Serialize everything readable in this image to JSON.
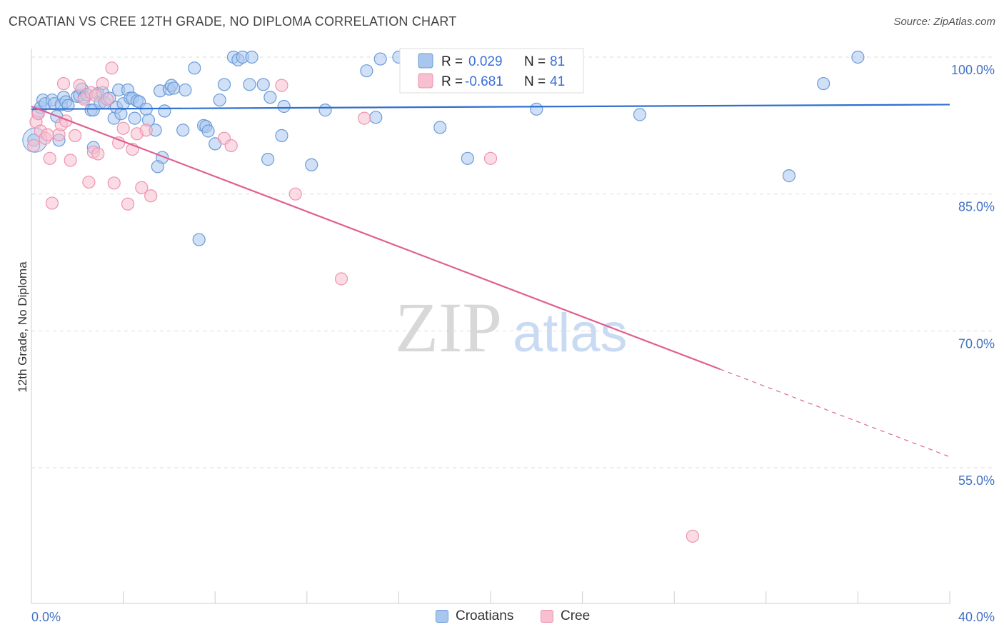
{
  "header": {
    "title": "CROATIAN VS CREE 12TH GRADE, NO DIPLOMA CORRELATION CHART",
    "source": "Source: ZipAtlas.com"
  },
  "watermark": {
    "zip": "ZIP",
    "atlas": "atlas"
  },
  "colors": {
    "croatians_fill": "#a9c7ee",
    "croatians_stroke": "#6a9bd8",
    "croatians_line": "#2f6fd0",
    "cree_fill": "#f7bfd0",
    "cree_stroke": "#ee93b0",
    "cree_line": "#e05f8f",
    "tick_text": "#4472c4",
    "grid": "#dddddd"
  },
  "legend": {
    "croatians": {
      "r_label": "R =",
      "r_value": "0.029",
      "n_label": "N =",
      "n_value": "81"
    },
    "cree": {
      "r_label": "R =",
      "r_value": "-0.681",
      "n_label": "N =",
      "n_value": "41"
    }
  },
  "bottom_legend": {
    "croatians": "Croatians",
    "cree": "Cree"
  },
  "chart_data": {
    "type": "scatter",
    "xlabel": "",
    "ylabel": "12th Grade, No Diploma",
    "xlim": [
      0,
      40
    ],
    "ylim": [
      40,
      100
    ],
    "x_tick_labels": [
      "0.0%",
      "40.0%"
    ],
    "y_ticks": [
      55,
      70,
      85,
      100
    ],
    "y_tick_labels": [
      "55.0%",
      "70.0%",
      "85.0%",
      "100.0%"
    ],
    "grid": "horizontal dashed",
    "legend_position": "top-center",
    "series": [
      {
        "name": "Croatians",
        "r": 0.029,
        "n": 81,
        "trend": {
          "x": [
            0,
            40
          ],
          "y": [
            94.3,
            94.8
          ]
        },
        "points": [
          [
            0.1,
            90.9
          ],
          [
            0.3,
            94.0
          ],
          [
            0.4,
            94.5
          ],
          [
            0.5,
            95.3
          ],
          [
            0.6,
            94.9
          ],
          [
            0.9,
            95.3
          ],
          [
            1.0,
            94.9
          ],
          [
            1.1,
            93.5
          ],
          [
            1.2,
            90.9
          ],
          [
            1.3,
            94.8
          ],
          [
            1.4,
            95.6
          ],
          [
            1.5,
            95.1
          ],
          [
            1.6,
            94.7
          ],
          [
            2.0,
            95.7
          ],
          [
            2.1,
            95.8
          ],
          [
            2.2,
            96.5
          ],
          [
            2.3,
            95.6
          ],
          [
            2.4,
            95.9
          ],
          [
            2.6,
            94.2
          ],
          [
            2.7,
            94.2
          ],
          [
            2.9,
            96.0
          ],
          [
            3.0,
            95.0
          ],
          [
            3.1,
            96.1
          ],
          [
            3.2,
            95.0
          ],
          [
            3.4,
            95.5
          ],
          [
            3.6,
            93.3
          ],
          [
            3.7,
            94.5
          ],
          [
            3.8,
            96.4
          ],
          [
            3.9,
            93.8
          ],
          [
            4.0,
            94.9
          ],
          [
            4.2,
            96.4
          ],
          [
            4.3,
            95.5
          ],
          [
            4.4,
            95.5
          ],
          [
            4.5,
            93.3
          ],
          [
            4.6,
            95.2
          ],
          [
            4.7,
            95.1
          ],
          [
            5.0,
            94.3
          ],
          [
            5.1,
            93.1
          ],
          [
            5.4,
            92.0
          ],
          [
            5.6,
            96.3
          ],
          [
            5.7,
            89.0
          ],
          [
            5.5,
            88.0
          ],
          [
            6.0,
            96.5
          ],
          [
            6.1,
            96.9
          ],
          [
            6.2,
            96.6
          ],
          [
            6.6,
            92.0
          ],
          [
            6.7,
            96.4
          ],
          [
            7.1,
            98.8
          ],
          [
            7.3,
            80.0
          ],
          [
            7.5,
            92.5
          ],
          [
            7.6,
            92.4
          ],
          [
            7.7,
            91.9
          ],
          [
            8.0,
            90.5
          ],
          [
            8.2,
            95.3
          ],
          [
            8.4,
            97.0
          ],
          [
            8.8,
            100.0
          ],
          [
            9.0,
            99.7
          ],
          [
            9.2,
            100.0
          ],
          [
            9.5,
            97.0
          ],
          [
            9.6,
            100.0
          ],
          [
            10.1,
            97.0
          ],
          [
            10.3,
            88.8
          ],
          [
            10.4,
            95.6
          ],
          [
            10.9,
            91.4
          ],
          [
            11.0,
            94.6
          ],
          [
            12.2,
            88.2
          ],
          [
            12.8,
            94.2
          ],
          [
            14.6,
            98.5
          ],
          [
            15.2,
            99.8
          ],
          [
            15.0,
            93.4
          ],
          [
            16.0,
            100.0
          ],
          [
            17.1,
            98.2
          ],
          [
            17.8,
            92.3
          ],
          [
            19.0,
            88.9
          ],
          [
            22.0,
            94.3
          ],
          [
            26.5,
            93.7
          ],
          [
            33.0,
            87.0
          ],
          [
            34.5,
            97.1
          ],
          [
            36.0,
            100.0
          ],
          [
            2.7,
            90.1
          ],
          [
            5.8,
            94.1
          ]
        ]
      },
      {
        "name": "Cree",
        "r": -0.681,
        "n": 41,
        "trend": {
          "x": [
            0,
            30
          ],
          "y": [
            94.6,
            65.8
          ]
        },
        "trend_dashed": {
          "x": [
            30,
            40
          ],
          "y": [
            65.8,
            56.2
          ]
        },
        "points": [
          [
            0.1,
            90.3
          ],
          [
            0.2,
            92.9
          ],
          [
            0.3,
            93.8
          ],
          [
            0.4,
            91.9
          ],
          [
            0.6,
            91.1
          ],
          [
            0.7,
            91.5
          ],
          [
            0.8,
            88.9
          ],
          [
            0.9,
            84.0
          ],
          [
            1.2,
            91.5
          ],
          [
            1.3,
            92.6
          ],
          [
            1.4,
            97.1
          ],
          [
            1.5,
            93.0
          ],
          [
            1.7,
            88.7
          ],
          [
            1.9,
            91.4
          ],
          [
            2.1,
            96.9
          ],
          [
            2.3,
            95.4
          ],
          [
            2.5,
            86.3
          ],
          [
            2.6,
            96.1
          ],
          [
            2.7,
            89.6
          ],
          [
            2.8,
            95.8
          ],
          [
            2.9,
            89.4
          ],
          [
            3.1,
            97.1
          ],
          [
            3.3,
            95.4
          ],
          [
            3.5,
            98.8
          ],
          [
            3.6,
            86.2
          ],
          [
            3.8,
            90.6
          ],
          [
            4.0,
            92.2
          ],
          [
            4.2,
            83.9
          ],
          [
            4.4,
            89.9
          ],
          [
            4.6,
            91.6
          ],
          [
            4.8,
            85.7
          ],
          [
            5.0,
            92.0
          ],
          [
            5.2,
            84.8
          ],
          [
            8.4,
            91.1
          ],
          [
            8.7,
            90.3
          ],
          [
            10.9,
            96.9
          ],
          [
            11.5,
            85.0
          ],
          [
            13.5,
            75.7
          ],
          [
            14.5,
            93.3
          ],
          [
            20.0,
            88.9
          ],
          [
            28.8,
            47.5
          ]
        ]
      }
    ]
  }
}
